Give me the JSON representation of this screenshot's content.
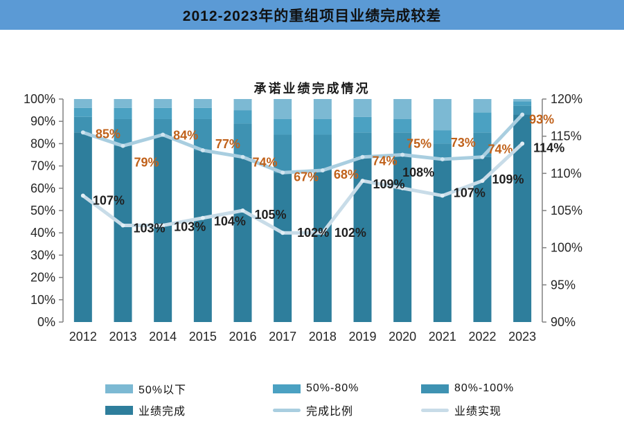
{
  "banner": {
    "title": "2012-2023年的重组项目业绩完成较差",
    "bg_color": "#5B9AD5"
  },
  "chart_data": {
    "type": "bar",
    "subtype": "stacked-100-with-lines",
    "title": "承诺业绩完成情况",
    "categories": [
      "2012",
      "2013",
      "2014",
      "2015",
      "2016",
      "2017",
      "2018",
      "2019",
      "2020",
      "2021",
      "2022",
      "2023"
    ],
    "stack_series": [
      {
        "name": "业绩完成",
        "color": "#2E7E9C",
        "values": [
          85,
          79,
          84,
          77,
          74,
          67,
          68,
          74,
          75,
          73,
          74,
          93
        ]
      },
      {
        "name": "80%-100%",
        "color": "#3E92B2",
        "values": [
          7,
          12,
          7,
          14,
          15,
          17,
          16,
          11,
          10,
          7,
          11,
          4
        ]
      },
      {
        "name": "50%-80%",
        "color": "#4BA1C2",
        "values": [
          4,
          5,
          5,
          5,
          6,
          7,
          7,
          7,
          6,
          6,
          9,
          2
        ]
      },
      {
        "name": "50%以下",
        "color": "#7CB9D3",
        "values": [
          4,
          4,
          4,
          4,
          5,
          9,
          9,
          8,
          9,
          14,
          6,
          1
        ]
      }
    ],
    "line_series": [
      {
        "name": "完成比例",
        "axis": "left",
        "color": "#A9CEE0",
        "marker_color": "#d2e5f0",
        "label_color": "#C0611A",
        "values": [
          85,
          79,
          84,
          77,
          74,
          67,
          68,
          74,
          75,
          73,
          74,
          93
        ],
        "labels": [
          "85%",
          "79%",
          "84%",
          "77%",
          "74%",
          "67%",
          "68%",
          "74%",
          "75%",
          "73%",
          "74%",
          "93%"
        ]
      },
      {
        "name": "业绩实现",
        "axis": "right",
        "color": "#C8DCE8",
        "marker_color": "#e2eef5",
        "label_color": "#1f1f1f",
        "values": [
          107,
          103,
          103,
          104,
          105,
          102,
          102,
          109,
          108,
          107,
          109,
          114
        ],
        "labels": [
          "107%",
          "103%",
          "103%",
          "104%",
          "105%",
          "102%",
          "102%",
          "109%",
          "108%",
          "107%",
          "109%",
          "114%"
        ]
      }
    ],
    "left_axis": {
      "min": 0,
      "max": 100,
      "step": 10,
      "ticks": [
        "0%",
        "10%",
        "20%",
        "30%",
        "40%",
        "50%",
        "60%",
        "70%",
        "80%",
        "90%",
        "100%"
      ]
    },
    "right_axis": {
      "min": 90,
      "max": 120,
      "step": 5,
      "ticks": [
        "90%",
        "95%",
        "100%",
        "105%",
        "110%",
        "115%",
        "120%"
      ]
    },
    "grid": false,
    "legend_position": "bottom",
    "legend": [
      {
        "label": "50%以下",
        "type": "bar",
        "color": "#7CB9D3"
      },
      {
        "label": "50%-80%",
        "type": "bar",
        "color": "#4BA1C2"
      },
      {
        "label": "80%-100%",
        "type": "bar",
        "color": "#3E92B2"
      },
      {
        "label": "业绩完成",
        "type": "bar",
        "color": "#2E7E9C"
      },
      {
        "label": "完成比例",
        "type": "line",
        "color": "#A9CEE0"
      },
      {
        "label": "业绩实现",
        "type": "line",
        "color": "#C8DCE8"
      }
    ]
  }
}
